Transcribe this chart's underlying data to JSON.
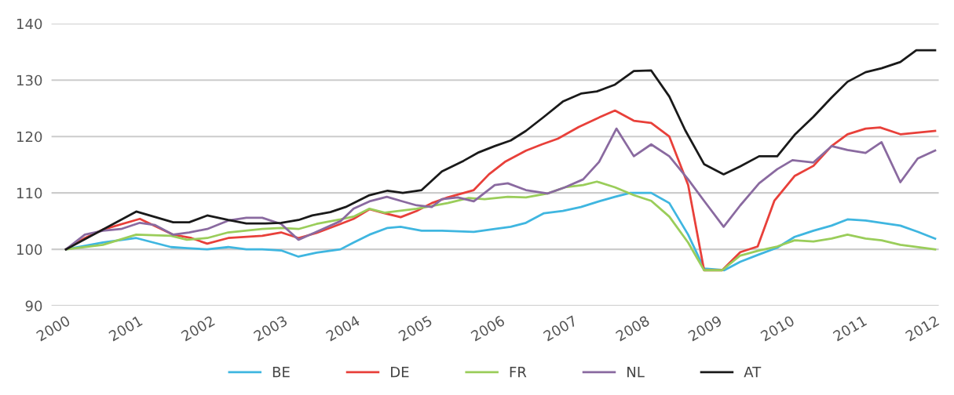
{
  "chart_data": {
    "type": "line",
    "series": [
      {
        "name": "BE",
        "color": "#3fb6e0",
        "x": [
          2000,
          2000.51,
          2000.97,
          2001.45,
          2001.67,
          2001.95,
          2002.24,
          2002.49,
          2002.71,
          2002.97,
          2003.21,
          2003.46,
          2003.79,
          2003.97,
          2004.19,
          2004.44,
          2004.62,
          2004.91,
          2005.19,
          2005.63,
          2005.92,
          2006.14,
          2006.35,
          2006.6,
          2006.86,
          2007.11,
          2007.36,
          2007.58,
          2007.79,
          2008.08,
          2008.33,
          2008.59,
          2008.81,
          2009.09,
          2009.31,
          2009.57,
          2009.82,
          2010.06,
          2010.32,
          2010.57,
          2010.79,
          2011.04,
          2011.26,
          2011.52,
          2011.76,
          2012
        ],
        "values": [
          100,
          101.2,
          102,
          100.4,
          100.2,
          100,
          100.4,
          100,
          100,
          99.8,
          98.7,
          99.4,
          100,
          101.2,
          102.6,
          103.8,
          104,
          103.3,
          103.3,
          103.1,
          103.6,
          104,
          104.7,
          106.4,
          106.8,
          107.5,
          108.5,
          109.3,
          110,
          110,
          108.2,
          102.6,
          96.6,
          96.3,
          97.8,
          99.1,
          100.3,
          102.2,
          103.3,
          104.2,
          105.3,
          105.1,
          104.7,
          104.2,
          103.1,
          101.9
        ]
      },
      {
        "name": "DE",
        "color": "#e8403a",
        "x": [
          2000,
          2000.26,
          2000.51,
          2001.02,
          2001.48,
          2001.73,
          2001.95,
          2002.24,
          2002.71,
          2002.97,
          2003.21,
          2003.46,
          2003.79,
          2003.97,
          2004.19,
          2004.4,
          2004.62,
          2004.84,
          2005.05,
          2005.27,
          2005.63,
          2005.84,
          2006.06,
          2006.35,
          2006.57,
          2006.79,
          2007.08,
          2007.33,
          2007.58,
          2007.84,
          2008.08,
          2008.33,
          2008.59,
          2008.81,
          2009.06,
          2009.31,
          2009.55,
          2009.78,
          2010.06,
          2010.32,
          2010.57,
          2010.79,
          2011.04,
          2011.24,
          2011.52,
          2012
        ],
        "values": [
          100,
          102,
          103.5,
          105.4,
          102.6,
          102,
          101,
          102,
          102.4,
          103,
          102,
          102.9,
          104.5,
          105.4,
          107.1,
          106.4,
          105.7,
          106.8,
          108.2,
          109.2,
          110.5,
          113.3,
          115.5,
          117.5,
          118.6,
          119.6,
          121.7,
          123.2,
          124.6,
          122.8,
          122.4,
          120,
          111.4,
          96.3,
          96.3,
          99.5,
          100.5,
          108.6,
          113,
          114.8,
          118.3,
          120.4,
          121.4,
          121.6,
          120.4,
          121
        ]
      },
      {
        "name": "FR",
        "color": "#9acd5a",
        "x": [
          2000,
          2000.51,
          2000.97,
          2001.45,
          2001.67,
          2001.95,
          2002.24,
          2002.71,
          2002.97,
          2003.21,
          2003.46,
          2003.79,
          2003.97,
          2004.19,
          2004.4,
          2004.84,
          2005.27,
          2005.56,
          2005.78,
          2006.1,
          2006.35,
          2006.65,
          2006.89,
          2007.14,
          2007.33,
          2007.58,
          2007.84,
          2008.08,
          2008.33,
          2008.59,
          2008.81,
          2009.06,
          2009.31,
          2009.57,
          2009.82,
          2010.06,
          2010.32,
          2010.57,
          2010.79,
          2011.04,
          2011.26,
          2011.52,
          2012
        ],
        "values": [
          100,
          100.8,
          102.6,
          102.4,
          101.7,
          102,
          103,
          103.6,
          103.8,
          103.6,
          104.5,
          105.3,
          105.8,
          107.2,
          106.5,
          107.2,
          108.2,
          109.1,
          108.9,
          109.3,
          109.2,
          109.9,
          111,
          111.4,
          112,
          111,
          109.6,
          108.6,
          105.8,
          101.2,
          96.3,
          96.3,
          98.9,
          99.8,
          100.5,
          101.6,
          101.4,
          101.9,
          102.6,
          101.9,
          101.6,
          100.8,
          100
        ]
      },
      {
        "name": "NL",
        "color": "#8a6aa0",
        "x": [
          2000,
          2000.26,
          2000.51,
          2000.76,
          2001.02,
          2001.23,
          2001.48,
          2001.7,
          2001.95,
          2002.24,
          2002.49,
          2002.71,
          2002.97,
          2003.21,
          2003.46,
          2003.79,
          2003.97,
          2004.19,
          2004.43,
          2004.62,
          2004.84,
          2005.05,
          2005.19,
          2005.41,
          2005.63,
          2005.92,
          2006.1,
          2006.35,
          2006.65,
          2006.89,
          2007.14,
          2007.36,
          2007.6,
          2007.84,
          2008.08,
          2008.33,
          2008.59,
          2008.81,
          2009.08,
          2009.31,
          2009.57,
          2009.82,
          2010.03,
          2010.32,
          2010.57,
          2010.79,
          2011.04,
          2011.26,
          2011.52,
          2011.76,
          2012
        ],
        "values": [
          100,
          102.6,
          103.3,
          103.6,
          104.7,
          104.3,
          102.6,
          103,
          103.6,
          105.1,
          105.6,
          105.6,
          104.5,
          101.7,
          103.1,
          105,
          107.2,
          108.5,
          109.3,
          108.6,
          107.8,
          107.5,
          108.9,
          109.2,
          108.5,
          111.4,
          111.7,
          110.5,
          109.9,
          111,
          112.4,
          115.5,
          121.4,
          116.5,
          118.6,
          116.5,
          112.4,
          108.6,
          104,
          107.8,
          111.7,
          114.2,
          115.8,
          115.4,
          118.3,
          117.6,
          117.1,
          119,
          111.9,
          116.1,
          117.5
        ]
      },
      {
        "name": "AT",
        "color": "#1a1a1a",
        "x": [
          2000,
          2000.97,
          2001.48,
          2001.7,
          2001.95,
          2002.24,
          2002.49,
          2002.75,
          2002.97,
          2003.21,
          2003.4,
          2003.65,
          2003.86,
          2004.19,
          2004.44,
          2004.65,
          2004.91,
          2005.19,
          2005.49,
          2005.7,
          2005.92,
          2006.14,
          2006.35,
          2006.6,
          2006.86,
          2007.11,
          2007.33,
          2007.58,
          2007.84,
          2008.08,
          2008.33,
          2008.55,
          2008.81,
          2009.08,
          2009.31,
          2009.57,
          2009.82,
          2010.06,
          2010.32,
          2010.57,
          2010.79,
          2011.04,
          2011.26,
          2011.52,
          2011.74,
          2012
        ],
        "values": [
          100,
          106.7,
          104.8,
          104.8,
          106,
          105.2,
          104.6,
          104.6,
          104.7,
          105.2,
          106,
          106.6,
          107.5,
          109.6,
          110.4,
          110,
          110.5,
          113.8,
          115.7,
          117.2,
          118.3,
          119.3,
          121,
          123.5,
          126.2,
          127.6,
          128,
          129.2,
          131.6,
          131.7,
          127.1,
          121.1,
          115.1,
          113.3,
          114.7,
          116.5,
          116.5,
          120.3,
          123.5,
          126.9,
          129.7,
          131.4,
          132.1,
          133.2,
          135.3,
          135.3
        ]
      }
    ],
    "xlim": [
      1999.8,
      2012.05
    ],
    "xticks": [
      2000,
      2001,
      2002,
      2003,
      2004,
      2005,
      2006,
      2007,
      2008,
      2009,
      2010,
      2011,
      2012
    ],
    "ylim": [
      90,
      140
    ],
    "yticks": [
      90,
      100,
      110,
      120,
      130,
      140
    ],
    "grid": "y",
    "legend": "bottom",
    "marker": "none",
    "line_style": "solid"
  }
}
